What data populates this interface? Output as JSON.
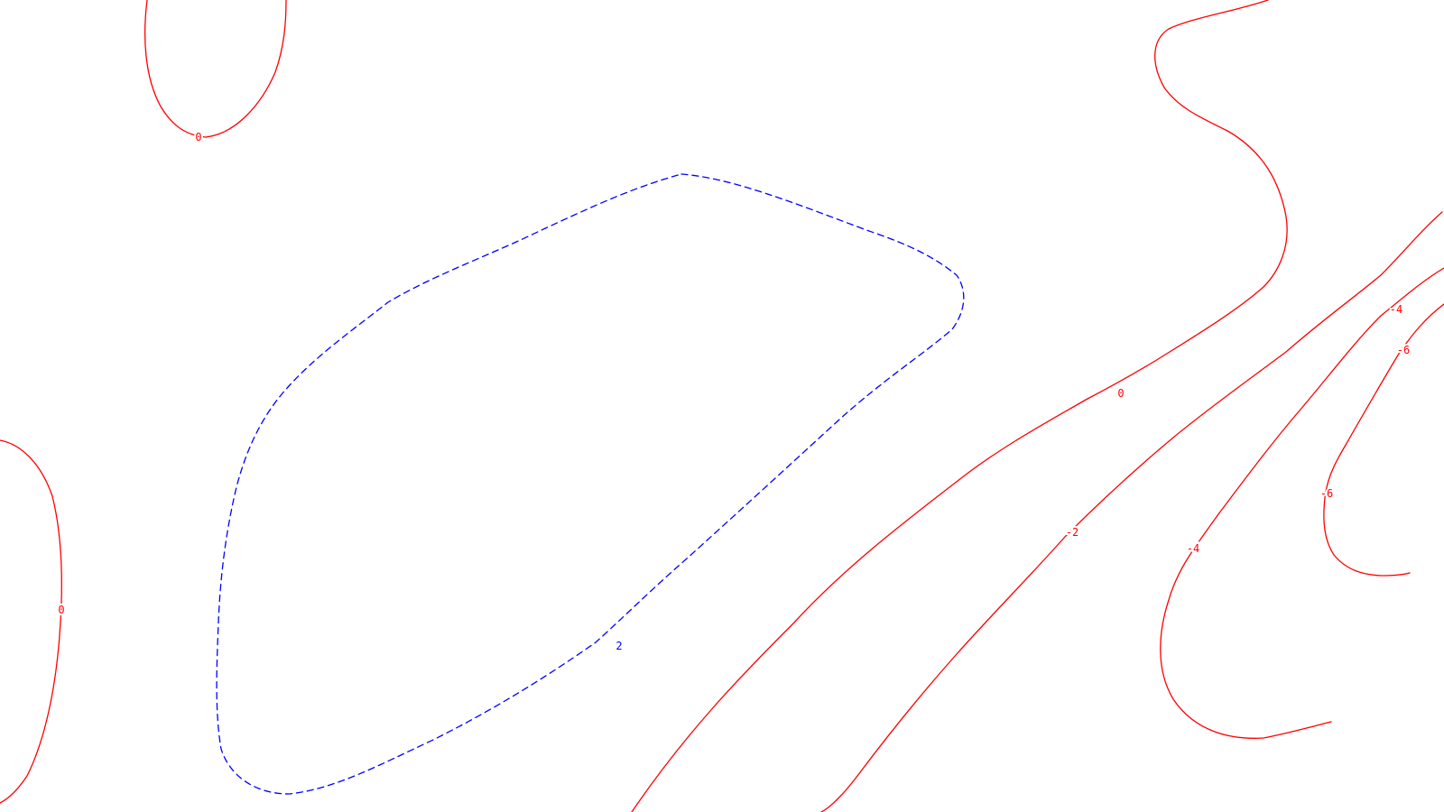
{
  "colors": {
    "background": "#ffffff",
    "negative_or_zero": "#ff0000",
    "positive": "#0000ff"
  },
  "contours": [
    {
      "id": "top-left-0",
      "level": 0,
      "label": "0",
      "style": "solid",
      "color": "#ff0000"
    },
    {
      "id": "left-edge-0",
      "level": 0,
      "label": "0",
      "style": "solid",
      "color": "#ff0000"
    },
    {
      "id": "center-2",
      "level": 2,
      "label": "2",
      "style": "dashed",
      "color": "#0000ff"
    },
    {
      "id": "right-0",
      "level": 0,
      "label": "0",
      "style": "solid",
      "color": "#ff0000"
    },
    {
      "id": "right-minus-2",
      "level": -2,
      "label": "-2",
      "style": "solid",
      "color": "#ff0000"
    },
    {
      "id": "right-minus-4",
      "level": -4,
      "label": "-4",
      "style": "solid",
      "color": "#ff0000"
    },
    {
      "id": "right-minus-6",
      "level": -6,
      "label": "-6",
      "style": "solid",
      "color": "#ff0000"
    }
  ]
}
